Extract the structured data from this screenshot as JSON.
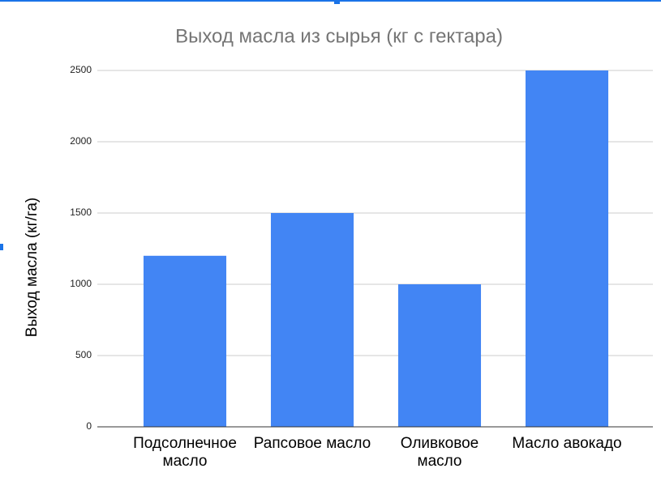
{
  "chart_data": {
    "type": "bar",
    "title": "Выход масла из сырья (кг с гектара)",
    "y_label": "Выход масла (кг/га)",
    "categories": [
      "Подсолнечное масло",
      "Рапсовое масло",
      "Оливковое масло",
      "Масло авокадо"
    ],
    "values": [
      1200,
      1500,
      1000,
      2500
    ],
    "color": "#4285f4",
    "ylim": [
      0,
      2500
    ],
    "yticks": [
      0,
      500,
      1000,
      1500,
      2000,
      2500
    ],
    "grid": true
  }
}
